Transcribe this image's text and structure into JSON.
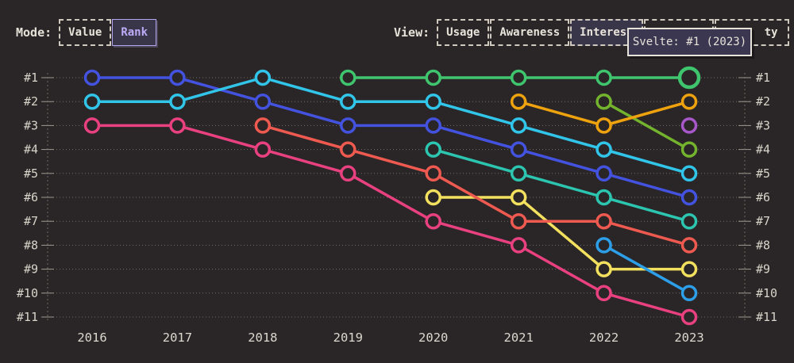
{
  "mode": {
    "label": "Mode:",
    "buttons": [
      {
        "label": "Value",
        "selected": false
      },
      {
        "label": "Rank",
        "selected": true
      }
    ]
  },
  "view": {
    "label": "View:",
    "buttons": [
      {
        "label": "Usage",
        "selected": false
      },
      {
        "label": "Awareness",
        "selected": false
      },
      {
        "label": "Interest",
        "selected": true
      },
      {
        "label": "",
        "selected": false
      },
      {
        "label": "ty",
        "selected": false
      }
    ]
  },
  "tooltip": {
    "text": "Svelte: #1 (2023)"
  },
  "chart_data": {
    "type": "line",
    "subtype": "rank-bump",
    "x_categories": [
      "2016",
      "2017",
      "2018",
      "2019",
      "2020",
      "2021",
      "2022",
      "2023"
    ],
    "rank_labels": [
      "#1",
      "#2",
      "#3",
      "#4",
      "#5",
      "#6",
      "#7",
      "#8",
      "#9",
      "#10",
      "#11"
    ],
    "ylim": [
      1,
      11
    ],
    "grid": "dotted-horizontal",
    "axis_labels_both_sides": true,
    "colors": {
      "background": "#2a2627",
      "grid": "#8d877e",
      "axis": "#7b756d",
      "tick": "#a9a399",
      "label": "#d9d4ca"
    },
    "series": [
      {
        "id": "pink",
        "color": "#e94180",
        "points": [
          [
            2016,
            3
          ],
          [
            2017,
            3
          ],
          [
            2018,
            4
          ],
          [
            2019,
            5
          ],
          [
            2020,
            7
          ],
          [
            2021,
            8
          ],
          [
            2022,
            10
          ],
          [
            2023,
            11
          ]
        ]
      },
      {
        "id": "yellow",
        "color": "#f2e05e",
        "points": [
          [
            2020,
            6
          ],
          [
            2021,
            6
          ],
          [
            2022,
            9
          ],
          [
            2023,
            9
          ]
        ]
      },
      {
        "id": "salmon",
        "color": "#ef5a50",
        "points": [
          [
            2018,
            3
          ],
          [
            2019,
            4
          ],
          [
            2020,
            5
          ],
          [
            2021,
            7
          ],
          [
            2022,
            7
          ],
          [
            2023,
            8
          ]
        ]
      },
      {
        "id": "sky-blue",
        "color": "#2d9fe8",
        "points": [
          [
            2022,
            8
          ],
          [
            2023,
            10
          ]
        ]
      },
      {
        "id": "teal",
        "color": "#2cc5b0",
        "points": [
          [
            2020,
            4
          ],
          [
            2021,
            5
          ],
          [
            2022,
            6
          ],
          [
            2023,
            7
          ]
        ]
      },
      {
        "id": "royal-blue",
        "color": "#4353df",
        "points": [
          [
            2016,
            1
          ],
          [
            2017,
            1
          ],
          [
            2018,
            2
          ],
          [
            2019,
            3
          ],
          [
            2020,
            3
          ],
          [
            2021,
            4
          ],
          [
            2022,
            5
          ],
          [
            2023,
            6
          ]
        ]
      },
      {
        "id": "cyan",
        "color": "#31c5ea",
        "points": [
          [
            2016,
            2
          ],
          [
            2017,
            2
          ],
          [
            2018,
            1
          ],
          [
            2019,
            2
          ],
          [
            2020,
            2
          ],
          [
            2021,
            3
          ],
          [
            2022,
            4
          ],
          [
            2023,
            5
          ]
        ]
      },
      {
        "id": "lime",
        "color": "#73b32d",
        "points": [
          [
            2022,
            2
          ],
          [
            2023,
            4
          ]
        ]
      },
      {
        "id": "orange",
        "color": "#eda20e",
        "points": [
          [
            2021,
            2
          ],
          [
            2022,
            3
          ],
          [
            2023,
            2
          ]
        ]
      },
      {
        "id": "purple",
        "color": "#a757c9",
        "points": [
          [
            2023,
            3
          ]
        ]
      },
      {
        "id": "svelte",
        "name": "Svelte",
        "color": "#3fc56e",
        "points": [
          [
            2019,
            1
          ],
          [
            2020,
            1
          ],
          [
            2021,
            1
          ],
          [
            2022,
            1
          ],
          [
            2023,
            1
          ]
        ],
        "highlight_point": [
          2023,
          1
        ]
      }
    ]
  }
}
